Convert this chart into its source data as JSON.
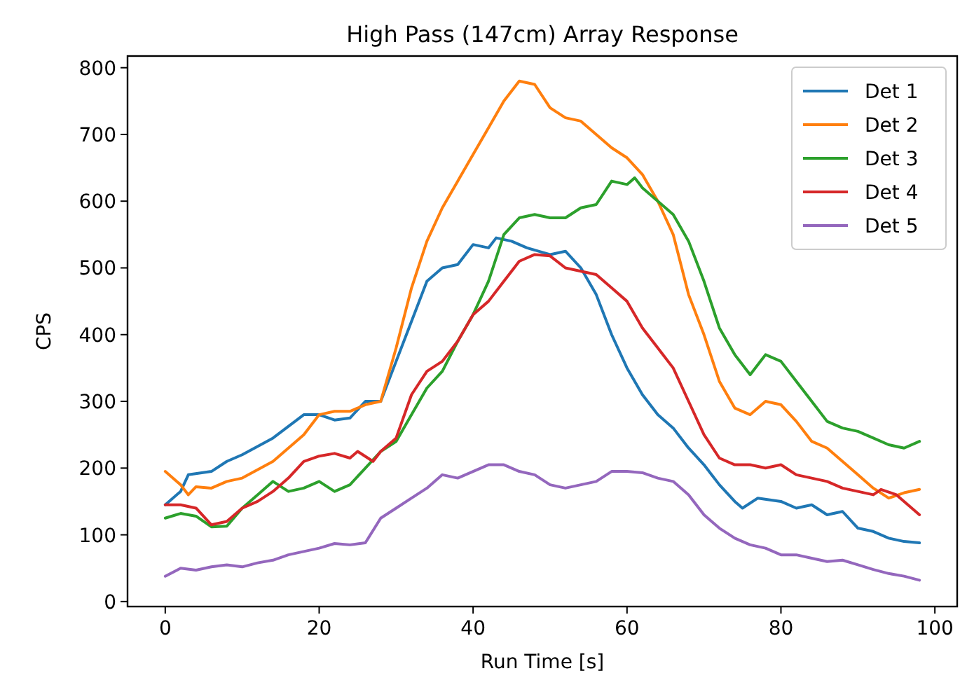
{
  "chart_data": {
    "type": "line",
    "title": "High Pass (147cm) Array Response",
    "xlabel": "Run Time [s]",
    "ylabel": "CPS",
    "xlim": [
      -4.9,
      102.9
    ],
    "ylim": [
      -7.5,
      817.5
    ],
    "xticks": [
      0,
      20,
      40,
      60,
      80,
      100
    ],
    "yticks": [
      0,
      100,
      200,
      300,
      400,
      500,
      600,
      700,
      800
    ],
    "grid": false,
    "legend": "top right",
    "series": [
      {
        "name": "Det 1",
        "color": "#1f77b4",
        "x": [
          0,
          2,
          3,
          6,
          8,
          10,
          14,
          18,
          20,
          22,
          24,
          26,
          28,
          30,
          32,
          34,
          36,
          38,
          40,
          42,
          43,
          45,
          47,
          50,
          52,
          54,
          56,
          58,
          60,
          62,
          64,
          66,
          68,
          70,
          72,
          74,
          75,
          77,
          80,
          82,
          84,
          86,
          88,
          90,
          92,
          94,
          96,
          98
        ],
        "values": [
          145,
          165,
          190,
          195,
          210,
          220,
          245,
          280,
          280,
          272,
          275,
          300,
          300,
          360,
          420,
          480,
          500,
          505,
          535,
          530,
          545,
          540,
          530,
          520,
          525,
          500,
          460,
          400,
          350,
          310,
          280,
          260,
          230,
          205,
          175,
          150,
          140,
          155,
          150,
          140,
          145,
          130,
          135,
          110,
          105,
          95,
          90,
          88
        ]
      },
      {
        "name": "Det 2",
        "color": "#ff7f0e",
        "x": [
          0,
          2,
          3,
          4,
          6,
          8,
          10,
          14,
          18,
          20,
          22,
          24,
          26,
          28,
          30,
          32,
          34,
          36,
          38,
          40,
          42,
          44,
          46,
          48,
          50,
          52,
          54,
          56,
          58,
          60,
          62,
          64,
          66,
          68,
          70,
          72,
          74,
          76,
          78,
          80,
          82,
          84,
          86,
          88,
          90,
          92,
          94,
          96,
          98
        ],
        "values": [
          195,
          175,
          160,
          172,
          170,
          180,
          185,
          210,
          250,
          280,
          285,
          285,
          295,
          300,
          380,
          470,
          540,
          590,
          630,
          670,
          710,
          750,
          780,
          775,
          740,
          725,
          720,
          700,
          680,
          665,
          640,
          600,
          550,
          460,
          400,
          330,
          290,
          280,
          300,
          295,
          270,
          240,
          230,
          210,
          190,
          170,
          155,
          163,
          168
        ]
      },
      {
        "name": "Det 3",
        "color": "#2ca02c",
        "x": [
          0,
          2,
          4,
          6,
          8,
          10,
          12,
          14,
          16,
          18,
          20,
          22,
          24,
          26,
          28,
          30,
          32,
          34,
          36,
          38,
          40,
          42,
          44,
          46,
          48,
          50,
          52,
          54,
          56,
          58,
          60,
          61,
          62,
          64,
          66,
          68,
          70,
          72,
          74,
          76,
          78,
          80,
          82,
          84,
          86,
          88,
          90,
          92,
          94,
          96,
          98
        ],
        "values": [
          125,
          132,
          128,
          112,
          113,
          140,
          160,
          180,
          165,
          170,
          180,
          165,
          175,
          200,
          225,
          240,
          280,
          320,
          345,
          390,
          430,
          480,
          550,
          575,
          580,
          575,
          575,
          590,
          595,
          630,
          625,
          635,
          620,
          600,
          580,
          540,
          480,
          410,
          370,
          340,
          370,
          360,
          330,
          300,
          270,
          260,
          255,
          245,
          235,
          230,
          240
        ]
      },
      {
        "name": "Det 4",
        "color": "#d62728",
        "x": [
          0,
          2,
          4,
          6,
          8,
          10,
          12,
          14,
          16,
          18,
          20,
          22,
          24,
          25,
          27,
          28,
          30,
          32,
          34,
          36,
          38,
          40,
          42,
          44,
          46,
          48,
          50,
          52,
          54,
          56,
          58,
          60,
          62,
          64,
          66,
          68,
          70,
          72,
          74,
          76,
          78,
          80,
          82,
          84,
          86,
          88,
          90,
          92,
          93,
          95,
          97,
          98
        ],
        "values": [
          145,
          145,
          140,
          115,
          120,
          140,
          150,
          165,
          185,
          210,
          218,
          222,
          215,
          225,
          210,
          225,
          245,
          310,
          345,
          360,
          390,
          430,
          450,
          480,
          510,
          520,
          518,
          500,
          495,
          490,
          470,
          450,
          410,
          380,
          350,
          300,
          250,
          215,
          205,
          205,
          200,
          205,
          190,
          185,
          180,
          170,
          165,
          160,
          168,
          160,
          140,
          130
        ]
      },
      {
        "name": "Det 5",
        "color": "#9467bd",
        "x": [
          0,
          2,
          4,
          6,
          8,
          10,
          12,
          14,
          16,
          18,
          20,
          22,
          24,
          26,
          28,
          30,
          32,
          34,
          36,
          38,
          40,
          42,
          44,
          46,
          48,
          50,
          52,
          54,
          56,
          58,
          60,
          62,
          64,
          66,
          68,
          70,
          72,
          74,
          76,
          78,
          80,
          82,
          84,
          86,
          88,
          90,
          92,
          94,
          96,
          98
        ],
        "values": [
          38,
          50,
          47,
          52,
          55,
          52,
          58,
          62,
          70,
          75,
          80,
          87,
          85,
          88,
          125,
          140,
          155,
          170,
          190,
          185,
          195,
          205,
          205,
          195,
          190,
          175,
          170,
          175,
          180,
          195,
          195,
          193,
          185,
          180,
          160,
          130,
          110,
          95,
          85,
          80,
          70,
          70,
          65,
          60,
          62,
          55,
          48,
          42,
          38,
          32
        ]
      }
    ]
  }
}
